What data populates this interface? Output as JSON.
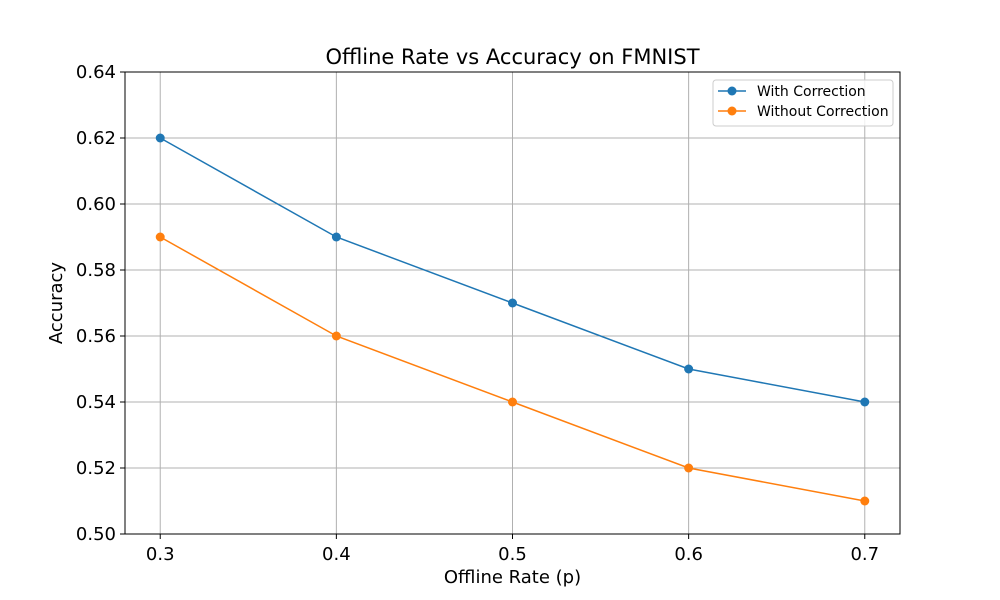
{
  "chart_data": {
    "type": "line",
    "title": "Offline Rate vs Accuracy on FMNIST",
    "xlabel": "Offline Rate (p)",
    "ylabel": "Accuracy",
    "x": [
      0.3,
      0.4,
      0.5,
      0.6,
      0.7
    ],
    "x_ticks": [
      "0.3",
      "0.4",
      "0.5",
      "0.6",
      "0.7"
    ],
    "y_ticks": [
      "0.50",
      "0.52",
      "0.54",
      "0.56",
      "0.58",
      "0.60",
      "0.62",
      "0.64"
    ],
    "xlim": [
      0.28,
      0.72
    ],
    "ylim": [
      0.5,
      0.64
    ],
    "grid": true,
    "legend_position": "top-right",
    "series": [
      {
        "name": "With Correction",
        "color": "#1f77b4",
        "marker": "circle",
        "values": [
          0.62,
          0.59,
          0.57,
          0.55,
          0.54
        ]
      },
      {
        "name": "Without Correction",
        "color": "#ff7f0e",
        "marker": "circle",
        "values": [
          0.59,
          0.56,
          0.54,
          0.52,
          0.51
        ]
      }
    ]
  }
}
